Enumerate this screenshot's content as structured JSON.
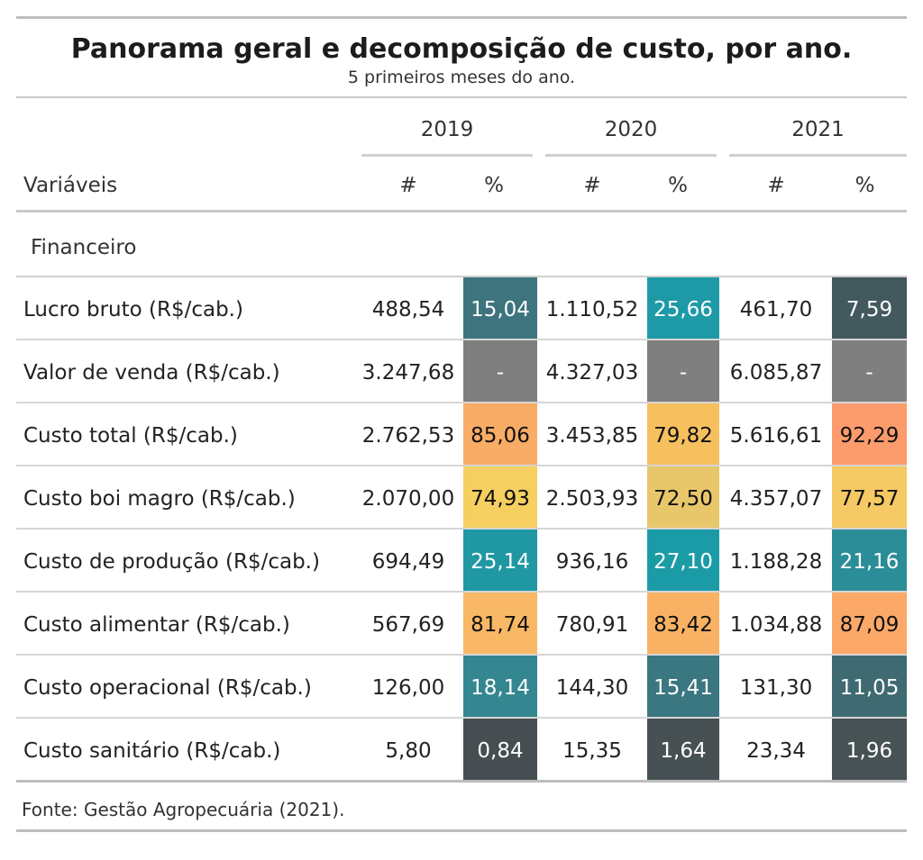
{
  "title": "Panorama geral e decomposição de custo, por ano.",
  "subtitle": "5 primeiros meses do ano.",
  "source": "Fonte: Gestão Agropecuária (2021).",
  "chart_data": {
    "type": "table",
    "title": "Panorama geral e decomposição de custo, por ano.",
    "subtitle": "5 primeiros meses do ano.",
    "row_header_label": "Variáveis",
    "years": [
      "2019",
      "2020",
      "2021"
    ],
    "subcolumns": [
      "#",
      "%"
    ],
    "group": "Financeiro",
    "rows": [
      {
        "label": "Lucro bruto (R$/cab.)",
        "values": [
          {
            "num": "488,54",
            "pct": "15,04",
            "color": "#3d747e"
          },
          {
            "num": "1.110,52",
            "pct": "25,66",
            "color": "#1e9aa6"
          },
          {
            "num": "461,70",
            "pct": "7,59",
            "color": "#42595e"
          }
        ]
      },
      {
        "label": "Valor de venda (R$/cab.)",
        "values": [
          {
            "num": "3.247,68",
            "pct": "-",
            "color": "#7f7f7f"
          },
          {
            "num": "4.327,03",
            "pct": "-",
            "color": "#7f7f7f"
          },
          {
            "num": "6.085,87",
            "pct": "-",
            "color": "#7f7f7f"
          }
        ]
      },
      {
        "label": "Custo total (R$/cab.)",
        "values": [
          {
            "num": "2.762,53",
            "pct": "85,06",
            "color": "#f9ac66"
          },
          {
            "num": "3.453,85",
            "pct": "79,82",
            "color": "#f7c05f"
          },
          {
            "num": "5.616,61",
            "pct": "92,29",
            "color": "#fc9b6b"
          }
        ]
      },
      {
        "label": "Custo boi magro (R$/cab.)",
        "values": [
          {
            "num": "2.070,00",
            "pct": "74,93",
            "color": "#f5cf5f"
          },
          {
            "num": "2.503,93",
            "pct": "72,50",
            "color": "#e8c76a"
          },
          {
            "num": "4.357,07",
            "pct": "77,57",
            "color": "#f5c963"
          }
        ]
      },
      {
        "label": "Custo de produção (R$/cab.)",
        "values": [
          {
            "num": "694,49",
            "pct": "25,14",
            "color": "#1f98a3"
          },
          {
            "num": "936,16",
            "pct": "27,10",
            "color": "#1b9ba6"
          },
          {
            "num": "1.188,28",
            "pct": "21,16",
            "color": "#2a8d97"
          }
        ]
      },
      {
        "label": "Custo alimentar (R$/cab.)",
        "values": [
          {
            "num": "567,69",
            "pct": "81,74",
            "color": "#f8b865"
          },
          {
            "num": "780,91",
            "pct": "83,42",
            "color": "#f9b264"
          },
          {
            "num": "1.034,88",
            "pct": "87,09",
            "color": "#fba868"
          }
        ]
      },
      {
        "label": "Custo operacional (R$/cab.)",
        "values": [
          {
            "num": "126,00",
            "pct": "18,14",
            "color": "#348690"
          },
          {
            "num": "144,30",
            "pct": "15,41",
            "color": "#3b7780"
          },
          {
            "num": "131,30",
            "pct": "11,05",
            "color": "#3f6a71"
          }
        ]
      },
      {
        "label": "Custo sanitário (R$/cab.)",
        "values": [
          {
            "num": "5,80",
            "pct": "0,84",
            "color": "#464e51"
          },
          {
            "num": "15,35",
            "pct": "1,64",
            "color": "#475154"
          },
          {
            "num": "23,34",
            "pct": "1,96",
            "color": "#475255"
          }
        ]
      }
    ]
  }
}
